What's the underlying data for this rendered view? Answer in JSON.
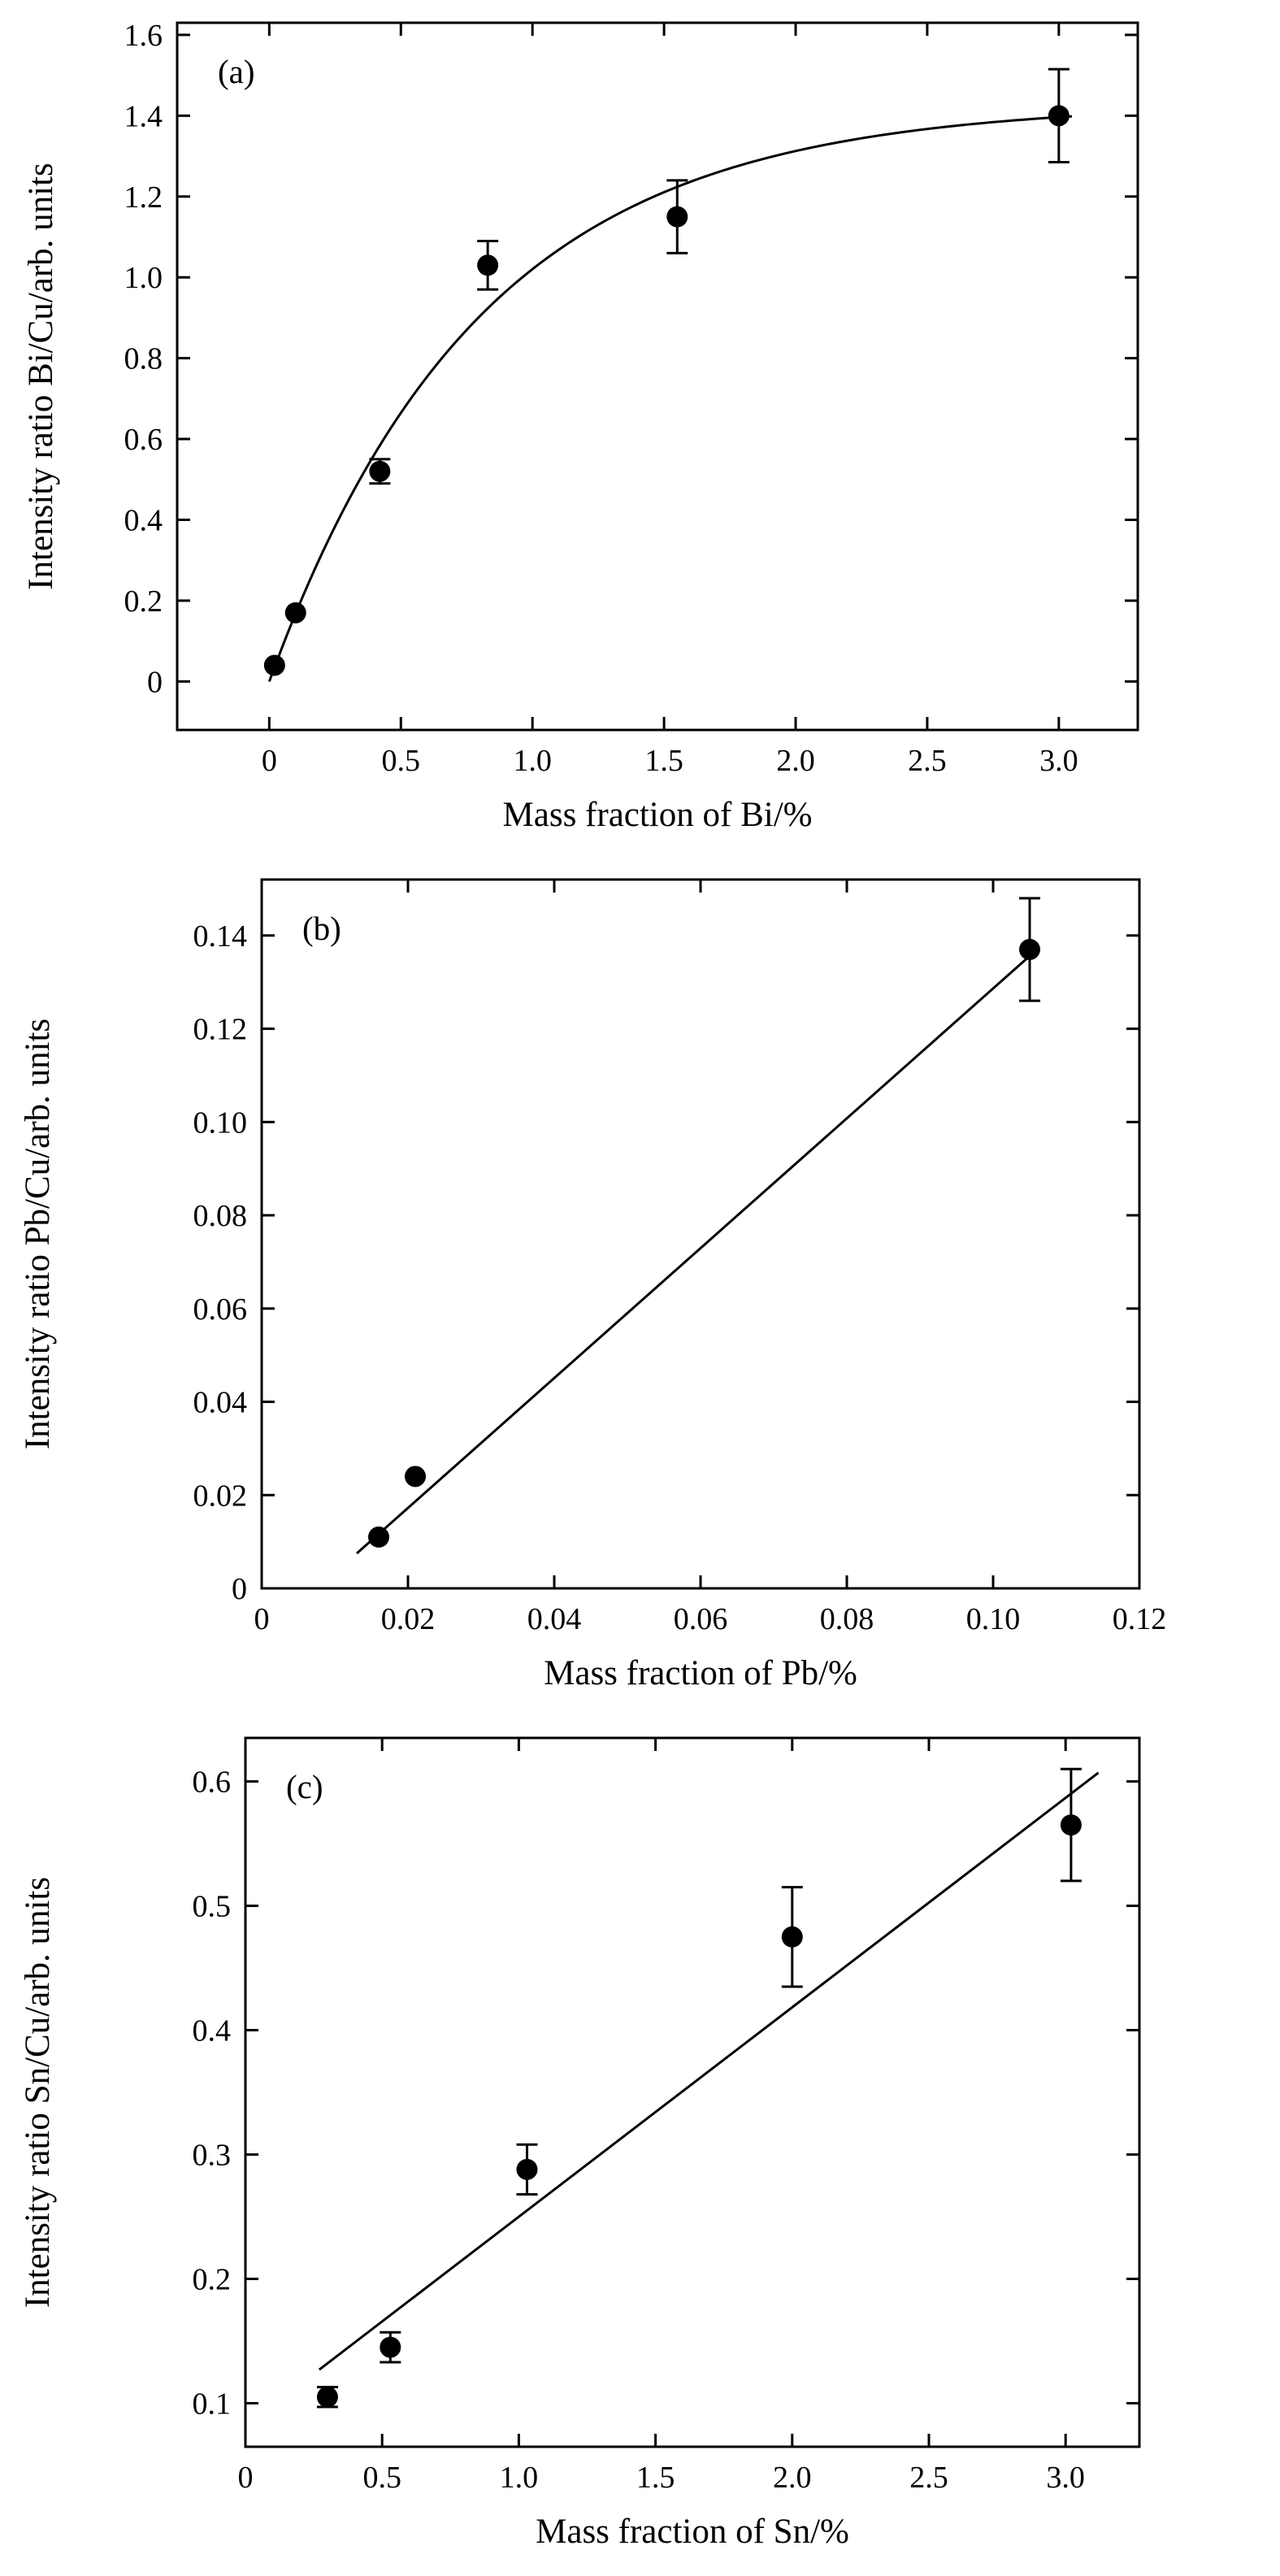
{
  "figure": {
    "background": "#ffffff",
    "foreground": "#000000",
    "description": "Three stacked calibration scatter plots with error bars and fit lines"
  },
  "chart_data": [
    {
      "type": "scatter",
      "panel_label": "(a)",
      "xlabel": "Mass fraction of Bi/%",
      "ylabel": "Intensity ratio Bi/Cu/arb. units",
      "xlim": [
        -0.35,
        3.3
      ],
      "ylim": [
        -0.12,
        1.63
      ],
      "grid": false,
      "legend": null,
      "xticks": {
        "values": [
          0,
          0.5,
          1.0,
          1.5,
          2.0,
          2.5,
          3.0
        ],
        "labels": [
          "0",
          "0.5",
          "1.0",
          "1.5",
          "2.0",
          "2.5",
          "3.0"
        ]
      },
      "yticks": {
        "values": [
          0,
          0.2,
          0.4,
          0.6,
          0.8,
          1.0,
          1.2,
          1.4,
          1.6
        ],
        "labels": [
          "0",
          "0.2",
          "0.4",
          "0.6",
          "0.8",
          "1.0",
          "1.2",
          "1.4",
          "1.6"
        ]
      },
      "points": [
        {
          "x": 0.02,
          "y": 0.04,
          "err": 0
        },
        {
          "x": 0.1,
          "y": 0.17,
          "err": 0
        },
        {
          "x": 0.42,
          "y": 0.52,
          "err": 0.03
        },
        {
          "x": 0.83,
          "y": 1.03,
          "err": 0.06
        },
        {
          "x": 1.55,
          "y": 1.15,
          "err": 0.09
        },
        {
          "x": 3.0,
          "y": 1.4,
          "err": 0.115
        }
      ],
      "fit": {
        "kind": "exp_saturation",
        "formula": "y = a*(1 - exp(-b*x))",
        "a": 1.43,
        "b": 1.25,
        "x_start": 0,
        "x_end": 3.05
      },
      "colors": {
        "marker": "#000000",
        "line": "#000000"
      }
    },
    {
      "type": "scatter",
      "panel_label": "(b)",
      "xlabel": "Mass fraction of Pb/%",
      "ylabel": "Intensity ratio Pb/Cu/arb. units",
      "xlim": [
        0,
        0.12
      ],
      "ylim": [
        0,
        0.152
      ],
      "grid": false,
      "legend": null,
      "xticks": {
        "values": [
          0,
          0.02,
          0.04,
          0.06,
          0.08,
          0.1,
          0.12
        ],
        "labels": [
          "0",
          "0.02",
          "0.04",
          "0.06",
          "0.08",
          "0.10",
          "0.12"
        ]
      },
      "yticks": {
        "values": [
          0,
          0.02,
          0.04,
          0.06,
          0.08,
          0.1,
          0.12,
          0.14
        ],
        "labels": [
          "0",
          "0.02",
          "0.04",
          "0.06",
          "0.08",
          "0.10",
          "0.12",
          "0.14"
        ]
      },
      "points": [
        {
          "x": 0.016,
          "y": 0.011,
          "err": 0
        },
        {
          "x": 0.021,
          "y": 0.024,
          "err": 0
        },
        {
          "x": 0.105,
          "y": 0.137,
          "err": 0.011
        }
      ],
      "fit": {
        "kind": "linear",
        "x1": 0.013,
        "y1": 0.0075,
        "x2": 0.106,
        "y2": 0.137
      },
      "colors": {
        "marker": "#000000",
        "line": "#000000"
      }
    },
    {
      "type": "scatter",
      "panel_label": "(c)",
      "xlabel": "Mass fraction of Sn/%",
      "ylabel": "Intensity ratio Sn/Cu/arb. units",
      "xlim": [
        0,
        3.27
      ],
      "ylim": [
        0.065,
        0.635
      ],
      "grid": false,
      "legend": null,
      "xticks": {
        "values": [
          0,
          0.5,
          1.0,
          1.5,
          2.0,
          2.5,
          3.0
        ],
        "labels": [
          "0",
          "0.5",
          "1.0",
          "1.5",
          "2.0",
          "2.5",
          "3.0"
        ]
      },
      "yticks": {
        "values": [
          0.1,
          0.2,
          0.3,
          0.4,
          0.5,
          0.6
        ],
        "labels": [
          "0.1",
          "0.2",
          "0.3",
          "0.4",
          "0.5",
          "0.6"
        ]
      },
      "points": [
        {
          "x": 0.3,
          "y": 0.105,
          "err": 0.008
        },
        {
          "x": 0.53,
          "y": 0.145,
          "err": 0.012
        },
        {
          "x": 1.03,
          "y": 0.288,
          "err": 0.02
        },
        {
          "x": 2.0,
          "y": 0.475,
          "err": 0.04
        },
        {
          "x": 3.02,
          "y": 0.565,
          "err": 0.045
        }
      ],
      "fit": {
        "kind": "linear",
        "x1": 0.27,
        "y1": 0.127,
        "x2": 3.12,
        "y2": 0.607
      },
      "colors": {
        "marker": "#000000",
        "line": "#000000"
      }
    }
  ]
}
